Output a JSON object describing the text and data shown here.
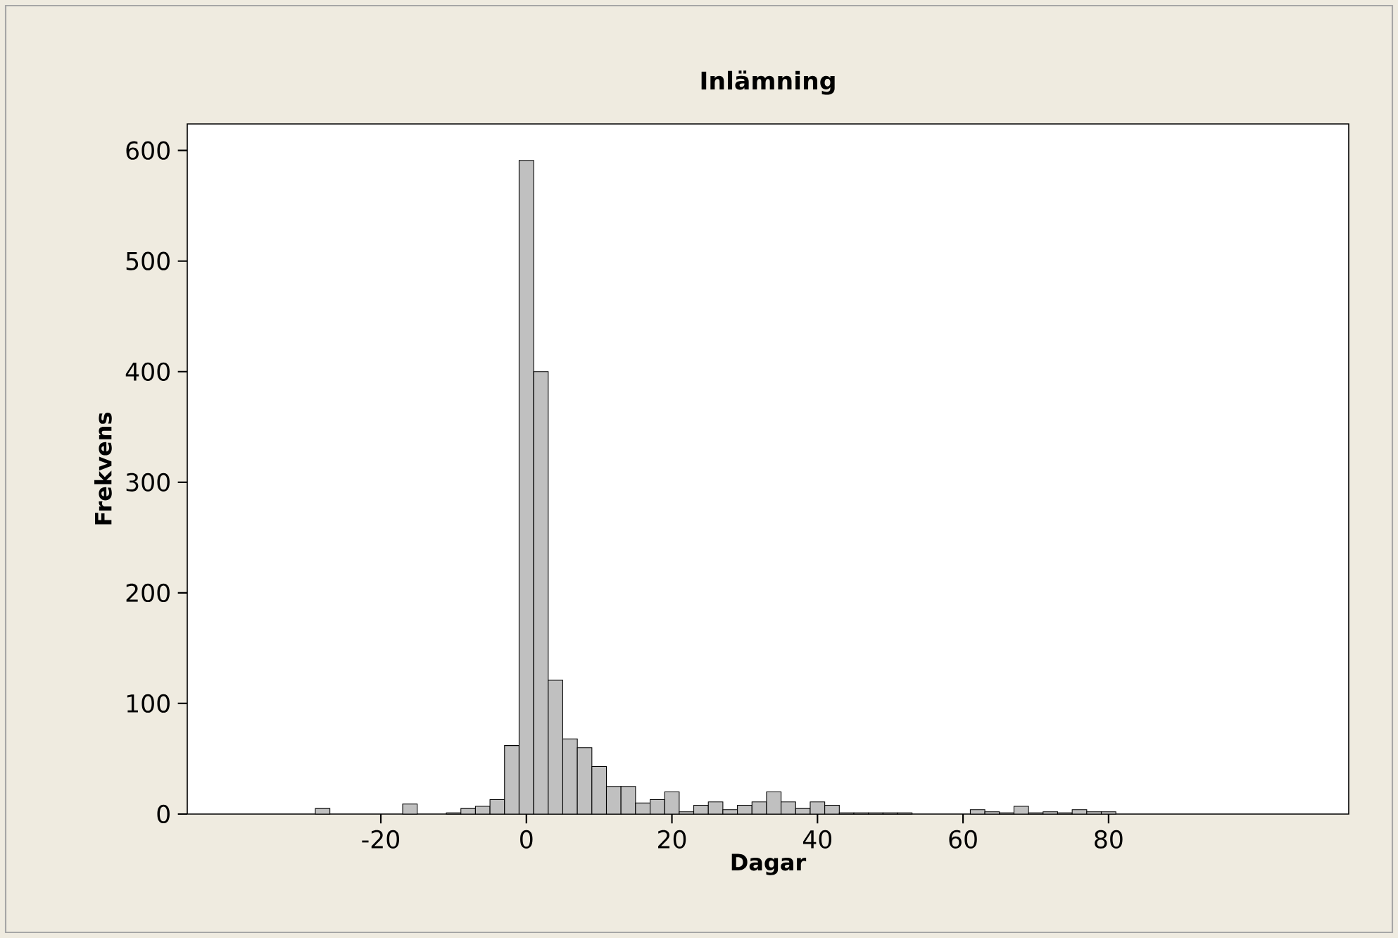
{
  "chart_data": {
    "type": "histogram",
    "title": "Inlämning",
    "xlabel": "Dagar",
    "ylabel": "Frekvens",
    "bins": [
      -29,
      -27,
      -25,
      -23,
      -21,
      -19,
      -17,
      -15,
      -13,
      -11,
      -9,
      -7,
      -5,
      -3,
      -1,
      1,
      3,
      5,
      7,
      9,
      11,
      13,
      15,
      17,
      19,
      21,
      23,
      25,
      27,
      29,
      31,
      33,
      35,
      37,
      39,
      41,
      43,
      45,
      47,
      49,
      51,
      53,
      55,
      57,
      59,
      61,
      63,
      65,
      67,
      69,
      71,
      73,
      75,
      77,
      79,
      81
    ],
    "values": [
      5,
      0,
      0,
      0,
      0,
      0,
      9,
      0,
      0,
      1,
      5,
      7,
      13,
      62,
      591,
      400,
      121,
      68,
      60,
      43,
      25,
      25,
      10,
      13,
      20,
      2,
      8,
      11,
      4,
      8,
      11,
      20,
      11,
      5,
      11,
      8,
      1,
      1,
      1,
      1,
      1,
      0,
      0,
      0,
      0,
      4,
      2,
      1,
      7,
      1,
      2,
      1,
      4,
      2,
      2
    ],
    "color": "#c0c0c0",
    "xlim": [
      -46.6,
      113
    ],
    "ylim": [
      0,
      624
    ],
    "xticks": [
      -20,
      0,
      20,
      40,
      60,
      80
    ],
    "yticks": [
      0,
      100,
      200,
      300,
      400,
      500,
      600
    ]
  }
}
